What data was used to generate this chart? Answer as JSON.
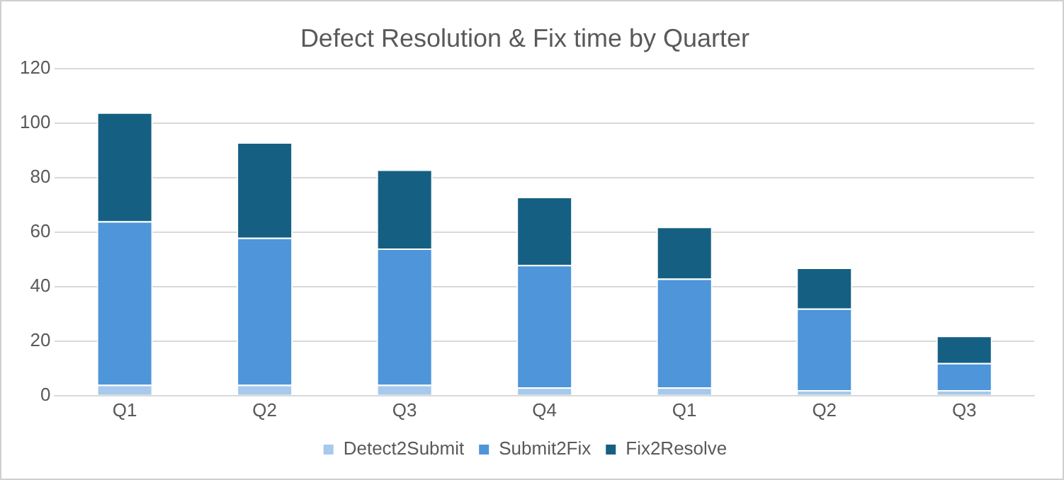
{
  "chart_data": {
    "type": "bar",
    "title": "Defect Resolution & Fix time by Quarter",
    "categories": [
      "Q1",
      "Q2",
      "Q3",
      "Q4",
      "Q1",
      "Q2",
      "Q3"
    ],
    "series": [
      {
        "name": "Detect2Submit",
        "color": "#a6c9ec",
        "values": [
          4,
          4,
          4,
          3,
          3,
          2,
          2
        ]
      },
      {
        "name": "Submit2Fix",
        "color": "#4e95d9",
        "values": [
          60,
          54,
          50,
          45,
          40,
          30,
          10
        ]
      },
      {
        "name": "Fix2Resolve",
        "color": "#156082",
        "values": [
          40,
          35,
          29,
          25,
          19,
          15,
          10
        ]
      }
    ],
    "stacked": true,
    "ylim": [
      0,
      120
    ],
    "yticks": [
      0,
      20,
      40,
      60,
      80,
      100,
      120
    ],
    "grid": "y",
    "legend": "bottom"
  }
}
